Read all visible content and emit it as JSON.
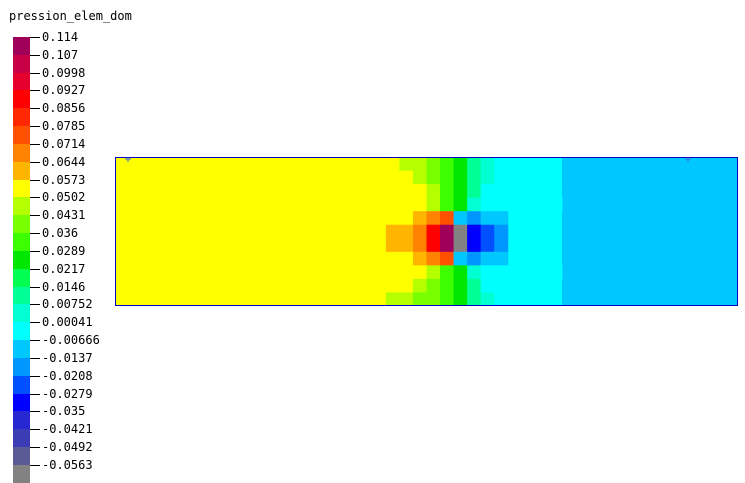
{
  "title": "pression_elem_dom",
  "legend": {
    "labels": [
      "0.114",
      "0.107",
      "0.0998",
      "0.0927",
      "0.0856",
      "0.0785",
      "0.0714",
      "0.0644",
      "0.0573",
      "0.0502",
      "0.0431",
      "0.036",
      "0.0289",
      "0.0217",
      "0.0146",
      "0.00752",
      "0.00041",
      "-0.00666",
      "-0.0137",
      "-0.0208",
      "-0.0279",
      "-0.035",
      "-0.0421",
      "-0.0492",
      "-0.0563"
    ],
    "colors": [
      "#a0005a",
      "#c80046",
      "#e6002d",
      "#ff0000",
      "#ff2800",
      "#ff5000",
      "#ff8200",
      "#ffb400",
      "#ffff00",
      "#b4ff00",
      "#78ff00",
      "#3cff00",
      "#00e600",
      "#00ff50",
      "#00ff96",
      "#00ffd2",
      "#00ffff",
      "#00c8ff",
      "#0096ff",
      "#0050ff",
      "#0000ff",
      "#2828d2",
      "#3c3cb4",
      "#5a5a96",
      "#828282"
    ]
  },
  "field": {
    "name": "pression_elem_dom",
    "columns": 46,
    "rows": 11,
    "stripes": [
      [
        0,
        20,
        "#ffff00"
      ],
      [
        20,
        21,
        "#b4ff00"
      ],
      [
        21,
        23,
        "#78ff00"
      ],
      [
        23,
        24,
        "#3cff00"
      ],
      [
        24,
        25,
        "#00e600"
      ],
      [
        25,
        26,
        "#00ff50"
      ],
      [
        26,
        27,
        "#00ff96"
      ],
      [
        27,
        28,
        "#00ffd2"
      ],
      [
        28,
        33,
        "#00ffff"
      ],
      [
        33,
        46,
        "#00c8ff"
      ]
    ],
    "cells": [
      [
        0,
        20,
        "#ffff00"
      ],
      [
        0,
        21,
        "#b4ff00"
      ],
      [
        0,
        22,
        "#b4ff00"
      ],
      [
        0,
        23,
        "#78ff00"
      ],
      [
        0,
        24,
        "#3cff00"
      ],
      [
        0,
        25,
        "#00e600"
      ],
      [
        0,
        26,
        "#00ff96"
      ],
      [
        0,
        27,
        "#00ffd2"
      ],
      [
        0,
        28,
        "#00ffff"
      ],
      [
        1,
        20,
        "#ffff00"
      ],
      [
        1,
        21,
        "#ffff00"
      ],
      [
        1,
        22,
        "#b4ff00"
      ],
      [
        1,
        23,
        "#78ff00"
      ],
      [
        1,
        24,
        "#3cff00"
      ],
      [
        1,
        25,
        "#00e600"
      ],
      [
        1,
        26,
        "#00ff96"
      ],
      [
        1,
        27,
        "#00ffd2"
      ],
      [
        1,
        28,
        "#00ffff"
      ],
      [
        2,
        20,
        "#ffff00"
      ],
      [
        2,
        21,
        "#ffff00"
      ],
      [
        2,
        22,
        "#ffff00"
      ],
      [
        2,
        23,
        "#b4ff00"
      ],
      [
        2,
        24,
        "#3cff00"
      ],
      [
        2,
        25,
        "#00e600"
      ],
      [
        2,
        26,
        "#00ff96"
      ],
      [
        2,
        27,
        "#00ffff"
      ],
      [
        2,
        28,
        "#00ffff"
      ],
      [
        2,
        31,
        "#00ffff"
      ],
      [
        2,
        32,
        "#00ffff"
      ],
      [
        2,
        33,
        "#00c8ff"
      ],
      [
        3,
        20,
        "#ffff00"
      ],
      [
        3,
        21,
        "#ffff00"
      ],
      [
        3,
        22,
        "#ffff00"
      ],
      [
        3,
        23,
        "#b4ff00"
      ],
      [
        3,
        24,
        "#3cff00"
      ],
      [
        3,
        25,
        "#00e600"
      ],
      [
        3,
        26,
        "#00ffd2"
      ],
      [
        3,
        27,
        "#00ffff"
      ],
      [
        3,
        28,
        "#00ffff"
      ],
      [
        3,
        31,
        "#00ffff"
      ],
      [
        3,
        32,
        "#00ffff"
      ],
      [
        4,
        20,
        "#ffff00"
      ],
      [
        4,
        21,
        "#ffff00"
      ],
      [
        4,
        22,
        "#ffb400"
      ],
      [
        4,
        23,
        "#ff8200"
      ],
      [
        4,
        24,
        "#ff5000"
      ],
      [
        4,
        25,
        "#00c8ff"
      ],
      [
        4,
        26,
        "#0096ff"
      ],
      [
        4,
        27,
        "#00c8ff"
      ],
      [
        4,
        28,
        "#00c8ff"
      ],
      [
        5,
        20,
        "#ffb400"
      ],
      [
        5,
        21,
        "#ffb400"
      ],
      [
        5,
        22,
        "#ff8200"
      ],
      [
        5,
        23,
        "#ff0000"
      ],
      [
        5,
        24,
        "#a0005a"
      ],
      [
        5,
        25,
        "#828282"
      ],
      [
        5,
        26,
        "#0000ff"
      ],
      [
        5,
        27,
        "#0050ff"
      ],
      [
        5,
        28,
        "#0096ff"
      ],
      [
        6,
        20,
        "#ffb400"
      ],
      [
        6,
        21,
        "#ffb400"
      ],
      [
        6,
        22,
        "#ff8200"
      ],
      [
        6,
        23,
        "#ff0000"
      ],
      [
        6,
        24,
        "#a0005a"
      ],
      [
        6,
        25,
        "#828282"
      ],
      [
        6,
        26,
        "#0000ff"
      ],
      [
        6,
        27,
        "#0050ff"
      ],
      [
        6,
        28,
        "#0096ff"
      ],
      [
        7,
        20,
        "#ffff00"
      ],
      [
        7,
        21,
        "#ffff00"
      ],
      [
        7,
        22,
        "#ffb400"
      ],
      [
        7,
        23,
        "#ff8200"
      ],
      [
        7,
        24,
        "#ff5000"
      ],
      [
        7,
        25,
        "#00c8ff"
      ],
      [
        7,
        26,
        "#0096ff"
      ],
      [
        7,
        27,
        "#00c8ff"
      ],
      [
        7,
        28,
        "#00c8ff"
      ],
      [
        8,
        20,
        "#ffff00"
      ],
      [
        8,
        21,
        "#ffff00"
      ],
      [
        8,
        22,
        "#ffff00"
      ],
      [
        8,
        23,
        "#b4ff00"
      ],
      [
        8,
        24,
        "#3cff00"
      ],
      [
        8,
        25,
        "#00e600"
      ],
      [
        8,
        26,
        "#00ffd2"
      ],
      [
        8,
        27,
        "#00ffff"
      ],
      [
        8,
        28,
        "#00ffff"
      ],
      [
        8,
        31,
        "#00ffff"
      ],
      [
        8,
        32,
        "#00ffff"
      ],
      [
        9,
        20,
        "#ffff00"
      ],
      [
        9,
        21,
        "#ffff00"
      ],
      [
        9,
        22,
        "#b4ff00"
      ],
      [
        9,
        23,
        "#78ff00"
      ],
      [
        9,
        24,
        "#3cff00"
      ],
      [
        9,
        25,
        "#00e600"
      ],
      [
        9,
        26,
        "#00ff96"
      ],
      [
        9,
        27,
        "#00ffff"
      ],
      [
        9,
        28,
        "#00ffff"
      ],
      [
        9,
        31,
        "#00ffff"
      ],
      [
        9,
        32,
        "#00ffff"
      ],
      [
        9,
        33,
        "#00c8ff"
      ],
      [
        10,
        20,
        "#b4ff00"
      ],
      [
        10,
        21,
        "#b4ff00"
      ],
      [
        10,
        22,
        "#78ff00"
      ],
      [
        10,
        23,
        "#78ff00"
      ],
      [
        10,
        24,
        "#3cff00"
      ],
      [
        10,
        25,
        "#00e600"
      ],
      [
        10,
        26,
        "#00ff96"
      ],
      [
        10,
        27,
        "#00ffd2"
      ],
      [
        10,
        28,
        "#00ffff"
      ]
    ],
    "border_color": "#0000c8"
  }
}
